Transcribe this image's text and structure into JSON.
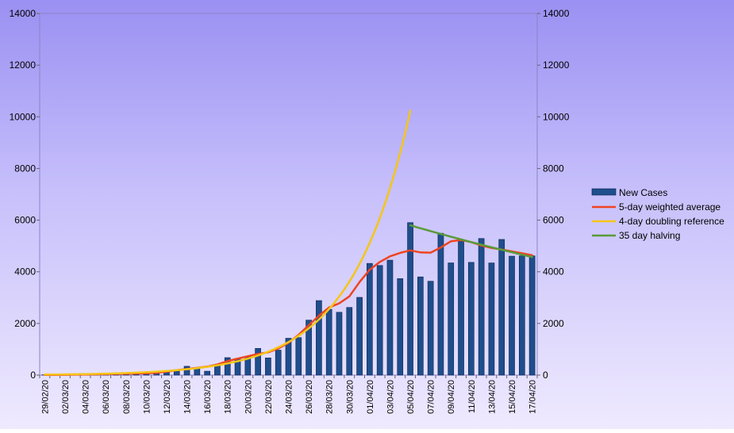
{
  "chart_data": {
    "type": "bar",
    "ylim": [
      0,
      14000
    ],
    "y_ticks": [
      0,
      2000,
      4000,
      6000,
      8000,
      10000,
      12000,
      14000
    ],
    "x_tick_labels": [
      "29/02/20",
      "02/03/20",
      "04/03/20",
      "06/03/20",
      "08/03/20",
      "10/03/20",
      "12/03/20",
      "14/03/20",
      "16/03/20",
      "18/03/20",
      "20/03/20",
      "22/03/20",
      "24/03/20",
      "26/03/20",
      "28/03/20",
      "30/03/20",
      "01/04/20",
      "03/04/20",
      "05/04/20",
      "07/04/20",
      "09/04/20",
      "11/04/20",
      "13/04/20",
      "15/04/20",
      "17/04/20"
    ],
    "categories": [
      "29/02/20",
      "01/03/20",
      "02/03/20",
      "03/03/20",
      "04/03/20",
      "05/03/20",
      "06/03/20",
      "07/03/20",
      "08/03/20",
      "09/03/20",
      "10/03/20",
      "11/03/20",
      "12/03/20",
      "13/03/20",
      "14/03/20",
      "15/03/20",
      "16/03/20",
      "17/03/20",
      "18/03/20",
      "19/03/20",
      "20/03/20",
      "21/03/20",
      "22/03/20",
      "23/03/20",
      "24/03/20",
      "25/03/20",
      "26/03/20",
      "27/03/20",
      "28/03/20",
      "29/03/20",
      "30/03/20",
      "31/03/20",
      "01/04/20",
      "02/04/20",
      "03/04/20",
      "04/04/20",
      "05/04/20",
      "06/04/20",
      "07/04/20",
      "08/04/20",
      "09/04/20",
      "10/04/20",
      "11/04/20",
      "12/04/20",
      "13/04/20",
      "14/04/20",
      "15/04/20",
      "16/04/20",
      "17/04/20"
    ],
    "series": [
      {
        "name": "New Cases",
        "kind": "bar",
        "color": "#1f4e8c",
        "values": [
          12,
          4,
          13,
          11,
          34,
          29,
          48,
          46,
          67,
          46,
          67,
          83,
          134,
          208,
          342,
          251,
          152,
          407,
          676,
          643,
          714,
          1035,
          665,
          967,
          1427,
          1452,
          2129,
          2885,
          2546,
          2433,
          2619,
          3009,
          4324,
          4244,
          4450,
          3735,
          5903,
          3802,
          3634,
          5491,
          4344,
          5195,
          4364,
          5288,
          4342,
          5252,
          4603,
          4617,
          4617
        ]
      },
      {
        "name": "5-day weighted average",
        "kind": "line",
        "color": "#ee4422",
        "values": [
          8,
          9,
          12,
          18,
          24,
          30,
          38,
          46,
          54,
          60,
          70,
          90,
          130,
          190,
          240,
          280,
          330,
          410,
          540,
          640,
          730,
          820,
          880,
          1030,
          1250,
          1560,
          1930,
          2300,
          2620,
          2780,
          3050,
          3600,
          4080,
          4380,
          4600,
          4730,
          4830,
          4750,
          4740,
          4940,
          5180,
          5230,
          5150,
          5020,
          4920,
          4860,
          4790,
          4720,
          4640
        ]
      },
      {
        "name": "4-day doubling reference",
        "kind": "line",
        "color": "#f5c518",
        "x": [
          "29/02/20",
          "05/04/20"
        ],
        "start_value": 20,
        "doubling_days": 4
      },
      {
        "name": "35 day halving",
        "kind": "line",
        "color": "#5a9a3a",
        "x": [
          "05/04/20",
          "17/04/20"
        ],
        "start_value": 5800,
        "halving_days": 35
      }
    ],
    "legend_position": "right",
    "grid": false
  }
}
